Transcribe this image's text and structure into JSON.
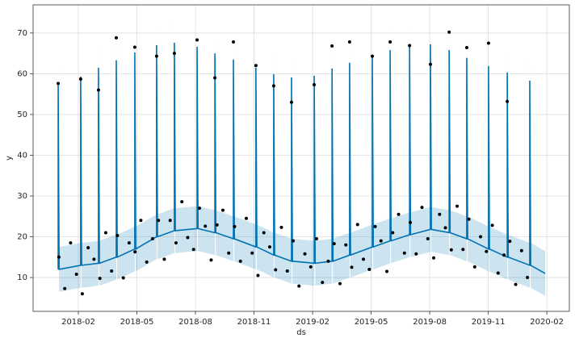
{
  "chart_data": {
    "type": "line",
    "xlabel": "ds",
    "ylabel": "y",
    "xlim": [
      2017.89,
      2020.179
    ],
    "ylim": [
      1.7,
      76.9
    ],
    "xticks": [
      {
        "value": 2018.083,
        "label": "2018-02"
      },
      {
        "value": 2018.333,
        "label": "2018-05"
      },
      {
        "value": 2018.583,
        "label": "2018-08"
      },
      {
        "value": 2018.833,
        "label": "2018-11"
      },
      {
        "value": 2019.083,
        "label": "2019-02"
      },
      {
        "value": 2019.333,
        "label": "2019-05"
      },
      {
        "value": 2019.583,
        "label": "2019-08"
      },
      {
        "value": 2019.833,
        "label": "2019-11"
      },
      {
        "value": 2020.083,
        "label": "2020-02"
      }
    ],
    "yticks": [
      10,
      20,
      30,
      40,
      50,
      60,
      70
    ],
    "grid": true,
    "forecast": {
      "color": "#0072B2",
      "band_opacity": 0.2,
      "x": [
        2017.997,
        2017.997,
        2018.001,
        2018.093,
        2018.093,
        2018.097,
        2018.169,
        2018.169,
        2018.173,
        2018.245,
        2018.245,
        2018.249,
        2018.324,
        2018.324,
        2018.328,
        2018.417,
        2018.417,
        2018.421,
        2018.493,
        2018.493,
        2018.497,
        2018.59,
        2018.59,
        2018.594,
        2018.666,
        2018.666,
        2018.67,
        2018.745,
        2018.745,
        2018.749,
        2018.841,
        2018.841,
        2018.845,
        2018.917,
        2018.917,
        2018.921,
        2018.993,
        2018.993,
        2018.997,
        2019.09,
        2019.09,
        2019.094,
        2019.166,
        2019.166,
        2019.17,
        2019.241,
        2019.241,
        2019.245,
        2019.338,
        2019.338,
        2019.342,
        2019.414,
        2019.414,
        2019.418,
        2019.497,
        2019.497,
        2019.501,
        2019.586,
        2019.586,
        2019.59,
        2019.666,
        2019.666,
        2019.67,
        2019.741,
        2019.741,
        2019.745,
        2019.834,
        2019.834,
        2019.838,
        2019.914,
        2019.914,
        2019.918,
        2020.01,
        2020.01,
        2020.014,
        2020.076
      ],
      "values": [
        12,
        57.5,
        12,
        13,
        59.3,
        13,
        13.5,
        61.5,
        13.5,
        15,
        63.3,
        15,
        17,
        65.2,
        17,
        20,
        67,
        20,
        21.5,
        67.6,
        21.5,
        22,
        66.6,
        22,
        21,
        65,
        21,
        19.5,
        63.5,
        19.5,
        17.5,
        61.5,
        17.5,
        15.5,
        59.9,
        15.5,
        14,
        59.1,
        14,
        13.5,
        59.5,
        13.5,
        14,
        61.3,
        14,
        15.5,
        62.7,
        15.5,
        17.5,
        64.3,
        17.5,
        19,
        65.8,
        19,
        20.5,
        67.2,
        20.5,
        21.8,
        67.2,
        21.8,
        21,
        65.8,
        21,
        19.5,
        63.9,
        19.5,
        17,
        61.9,
        17,
        15,
        60.3,
        15,
        13,
        58.3,
        13,
        11
      ],
      "lower": [
        6.5,
        53.5,
        6.5,
        7.5,
        55.3,
        7.5,
        8,
        57.5,
        8,
        9.5,
        59.3,
        9.5,
        11.5,
        61.2,
        11.5,
        14.5,
        63,
        14.5,
        16,
        63.6,
        16,
        16.5,
        62.6,
        16.5,
        15.5,
        61,
        15.5,
        14,
        59.5,
        14,
        12,
        57.5,
        12,
        10,
        55.9,
        10,
        8.5,
        55.1,
        8.5,
        8,
        55.5,
        8,
        8.5,
        57.3,
        8.5,
        10,
        58.7,
        10,
        12,
        60.3,
        12,
        13.5,
        61.8,
        13.5,
        15,
        63.2,
        15,
        16.3,
        63.2,
        16.3,
        15.5,
        61.8,
        15.5,
        14,
        59.9,
        14,
        11.5,
        57.9,
        11.5,
        9.5,
        56.3,
        9.5,
        7.5,
        54.3,
        7.5,
        5.5
      ],
      "upper": [
        17.5,
        62.5,
        17.5,
        18.5,
        64.3,
        18.5,
        19,
        66.5,
        19,
        20.5,
        68.3,
        20.5,
        22.5,
        70.2,
        22.5,
        25.5,
        72,
        25.5,
        27,
        72.6,
        27,
        27.5,
        71.6,
        27.5,
        26.5,
        70,
        26.5,
        25,
        68.5,
        25,
        23,
        66.5,
        23,
        21,
        64.9,
        21,
        19.5,
        64.1,
        19.5,
        19,
        64.5,
        19,
        19.5,
        66.3,
        19.5,
        21,
        67.7,
        21,
        23,
        69.3,
        23,
        24.5,
        70.8,
        24.5,
        26,
        72.2,
        26,
        27.3,
        72.2,
        27.3,
        26.5,
        70.8,
        26.5,
        25,
        68.9,
        25,
        22.5,
        66.9,
        22.5,
        20.5,
        65.3,
        20.5,
        18.5,
        63.3,
        18.5,
        16.5
      ]
    },
    "observed": {
      "color": "#000000",
      "x": [
        2018,
        2018.025,
        2018.05,
        2018.075,
        2018.1,
        2018.125,
        2018.15,
        2018.175,
        2018.2,
        2018.225,
        2018.25,
        2018.275,
        2018.3,
        2018.325,
        2018.35,
        2018.375,
        2018.4,
        2018.425,
        2018.45,
        2018.475,
        2018.5,
        2018.525,
        2018.55,
        2018.575,
        2018.6,
        2018.625,
        2018.65,
        2018.675,
        2018.7,
        2018.725,
        2018.75,
        2018.775,
        2018.8,
        2018.825,
        2018.85,
        2018.875,
        2018.9,
        2018.925,
        2018.95,
        2018.975,
        2019,
        2019.025,
        2019.05,
        2019.075,
        2019.1,
        2019.125,
        2019.15,
        2019.175,
        2019.2,
        2019.225,
        2019.25,
        2019.275,
        2019.3,
        2019.325,
        2019.35,
        2019.375,
        2019.4,
        2019.425,
        2019.45,
        2019.475,
        2019.5,
        2019.525,
        2019.55,
        2019.575,
        2019.6,
        2019.625,
        2019.65,
        2019.675,
        2019.7,
        2019.725,
        2019.75,
        2019.775,
        2019.8,
        2019.825,
        2019.85,
        2019.875,
        2019.9,
        2019.925,
        2019.95,
        2019.975,
        2020,
        2017.997,
        2018.093,
        2018.169,
        2018.245,
        2018.324,
        2018.417,
        2018.493,
        2018.59,
        2018.666,
        2018.745,
        2018.841,
        2018.917,
        2018.993,
        2019.09,
        2019.166,
        2019.241,
        2019.338,
        2019.414,
        2019.497,
        2019.586,
        2019.666,
        2019.741,
        2019.834,
        2019.914
      ],
      "values": [
        15,
        7.3,
        18.5,
        10.8,
        6,
        17.3,
        14.5,
        9.8,
        21,
        11.6,
        20.3,
        9.9,
        18.5,
        16.3,
        24,
        13.8,
        19.5,
        24,
        14.5,
        24,
        18.5,
        28.6,
        19.8,
        16.9,
        27,
        22.6,
        14.3,
        22.9,
        26.5,
        16,
        22.5,
        14,
        24.5,
        16,
        10.5,
        21,
        17.5,
        11.9,
        22.3,
        11.6,
        19,
        7.9,
        15.8,
        12.6,
        19.5,
        8.8,
        14,
        18.3,
        8.5,
        18,
        12.5,
        23,
        14.5,
        12,
        22.5,
        19,
        11.5,
        21,
        25.5,
        16,
        23.5,
        15.8,
        27.2,
        19.5,
        14.8,
        25.5,
        22.2,
        16.8,
        27.5,
        16.9,
        24.3,
        12.6,
        20,
        16.4,
        22.8,
        11.1,
        15.5,
        18.9,
        8.3,
        16.6,
        10,
        57.6,
        58.7,
        56,
        68.8,
        66.5,
        64.3,
        65,
        68.3,
        59,
        67.8,
        62,
        57,
        53,
        57.3,
        66.8,
        67.8,
        64.3,
        67.8,
        66.9,
        62.3,
        70.2,
        66.4,
        67.5,
        53.2
      ]
    }
  }
}
